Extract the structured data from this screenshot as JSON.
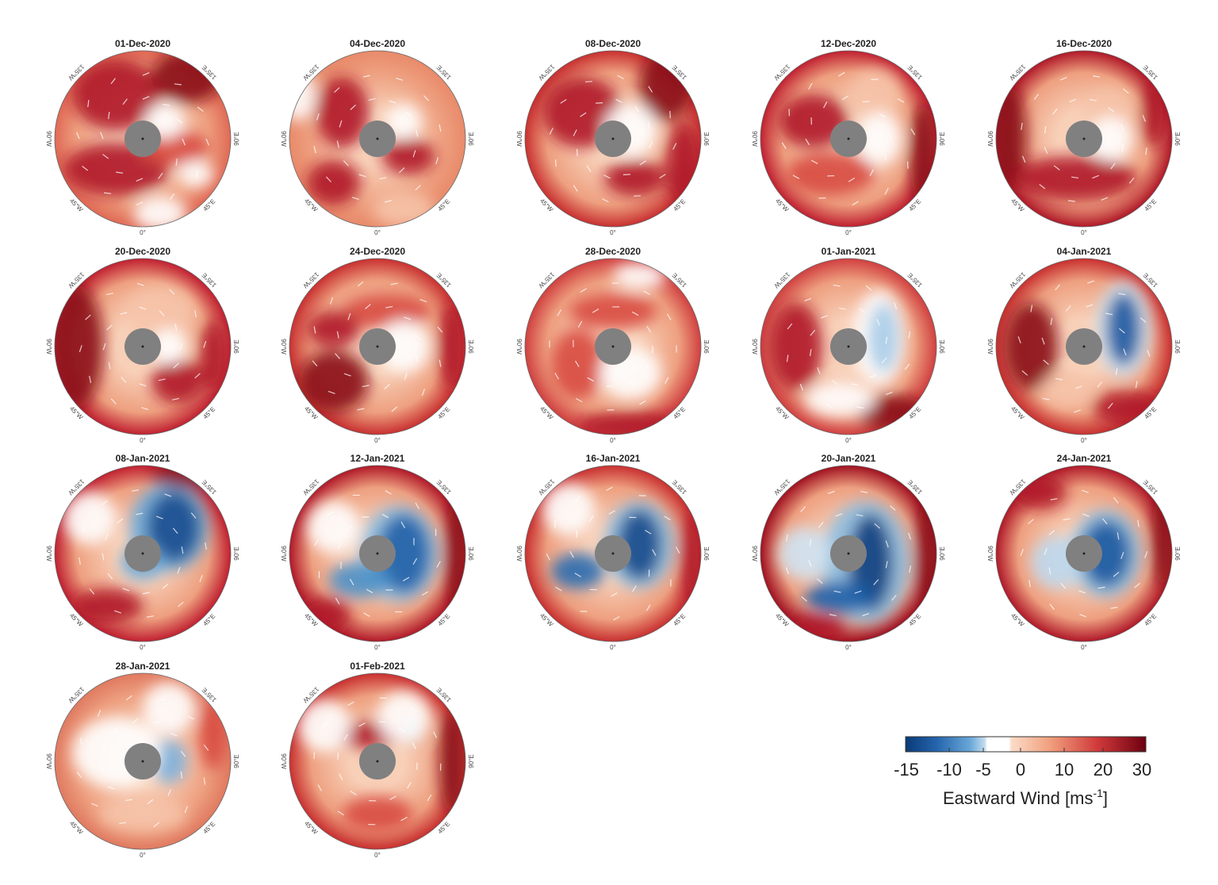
{
  "figure": {
    "panels": [
      {
        "title": "01-Dec-2020"
      },
      {
        "title": "04-Dec-2020"
      },
      {
        "title": "08-Dec-2020"
      },
      {
        "title": "12-Dec-2020"
      },
      {
        "title": "16-Dec-2020"
      },
      {
        "title": "20-Dec-2020"
      },
      {
        "title": "24-Dec-2020"
      },
      {
        "title": "28-Dec-2020"
      },
      {
        "title": "01-Jan-2021"
      },
      {
        "title": "04-Jan-2021"
      },
      {
        "title": "08-Jan-2021"
      },
      {
        "title": "12-Jan-2021"
      },
      {
        "title": "16-Jan-2021"
      },
      {
        "title": "20-Jan-2021"
      },
      {
        "title": "24-Jan-2021"
      },
      {
        "title": "28-Jan-2021"
      },
      {
        "title": "01-Feb-2021"
      }
    ],
    "longitude_labels": [
      "135°W",
      "135°E",
      "90°W",
      "90°E",
      "45°W",
      "45°E",
      "0°"
    ],
    "projection": "north polar stereographic",
    "pole_mask_color": "#808080"
  },
  "colorbar": {
    "label": "Eastward Wind [ms",
    "label_superscript": "-1",
    "label_close": "]",
    "ticks": [
      "-15",
      "-10",
      "-5",
      "0",
      "10",
      "20",
      "30"
    ],
    "range": [
      -15,
      30
    ],
    "colors": {
      "min": "#0a3a78",
      "zero": "#ffffff",
      "max": "#6e0010"
    }
  }
}
